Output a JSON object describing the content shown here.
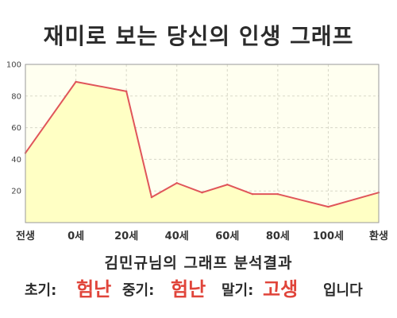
{
  "title": "재미로 보는 당신의 인생 그래프",
  "subtitle": "김민규님의 그래프 분석결과",
  "result": {
    "early_label": "초기:",
    "early_value": "험난",
    "middle_label": "중기:",
    "middle_value": "험난",
    "late_label": "말기:",
    "late_value": "고생",
    "ending": "입니다",
    "value_color": "#e0443a"
  },
  "chart_data": {
    "type": "area",
    "x_tick_labels": [
      "전생",
      "0세",
      "20세",
      "40세",
      "60세",
      "80세",
      "100세",
      "환생"
    ],
    "y_ticks": [
      20,
      40,
      60,
      80,
      100
    ],
    "ylim": [
      0,
      100
    ],
    "grid": true,
    "title": "재미로 보는 당신의 인생 그래프",
    "series": [
      {
        "x": [
          "전생",
          "0세",
          "20세",
          "30세",
          "40세",
          "50세",
          "60세",
          "70세",
          "80세",
          "100세",
          "환생"
        ],
        "values": [
          44,
          89,
          83,
          16,
          25,
          19,
          24,
          18,
          18,
          10,
          19
        ],
        "line_color": "#e0555a",
        "fill_color": "#ffffc4"
      }
    ]
  }
}
